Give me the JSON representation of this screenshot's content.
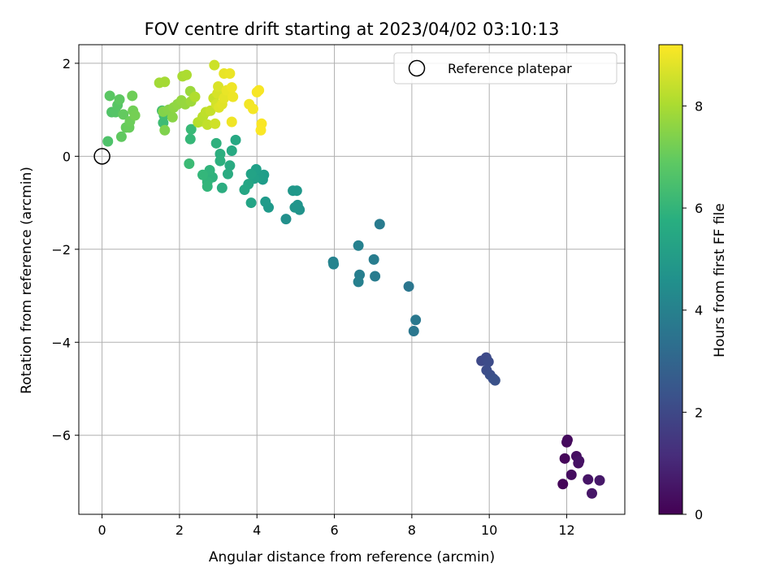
{
  "chart_data": {
    "type": "scatter",
    "title": "FOV centre drift starting at 2023/04/02 03:10:13",
    "xlabel": "Angular distance from reference (arcmin)",
    "ylabel": "Rotation from reference (arcmin)",
    "colorbar_label": "Hours from first FF file",
    "xlim": [
      -0.6,
      13.5
    ],
    "ylim": [
      -7.7,
      2.4
    ],
    "xticks": [
      0,
      2,
      4,
      6,
      8,
      10,
      12
    ],
    "xtick_labels": [
      "0",
      "2",
      "4",
      "6",
      "8",
      "10",
      "12"
    ],
    "yticks": [
      2,
      0,
      -2,
      -4,
      -6
    ],
    "ytick_labels": [
      "2",
      "0",
      "−2",
      "−4",
      "−6"
    ],
    "colorbar_range": [
      0,
      9.2
    ],
    "colorbar_ticks": [
      0,
      2,
      4,
      6,
      8
    ],
    "colorbar_tick_labels": [
      "0",
      "2",
      "4",
      "6",
      "8"
    ],
    "colormap": "viridis",
    "grid": true,
    "legend": {
      "position": "top-right",
      "label": "Reference platepar"
    },
    "reference_point": {
      "x": 0,
      "y": 0
    },
    "points": [
      {
        "x": 11.9,
        "y": -7.05,
        "h": 0.1
      },
      {
        "x": 11.95,
        "y": -6.5,
        "h": 0.15
      },
      {
        "x": 12.0,
        "y": -6.15,
        "h": 0.2
      },
      {
        "x": 12.02,
        "y": -6.1,
        "h": 0.25
      },
      {
        "x": 12.12,
        "y": -6.85,
        "h": 0.3
      },
      {
        "x": 12.25,
        "y": -6.45,
        "h": 0.35
      },
      {
        "x": 12.3,
        "y": -6.6,
        "h": 0.4
      },
      {
        "x": 12.32,
        "y": -6.55,
        "h": 0.45
      },
      {
        "x": 12.55,
        "y": -6.95,
        "h": 0.5
      },
      {
        "x": 12.65,
        "y": -7.25,
        "h": 0.55
      },
      {
        "x": 12.85,
        "y": -6.97,
        "h": 0.6
      },
      {
        "x": 9.8,
        "y": -4.4,
        "h": 2.0
      },
      {
        "x": 9.92,
        "y": -4.33,
        "h": 2.05
      },
      {
        "x": 9.98,
        "y": -4.42,
        "h": 2.1
      },
      {
        "x": 9.93,
        "y": -4.6,
        "h": 2.15
      },
      {
        "x": 10.02,
        "y": -4.7,
        "h": 2.2
      },
      {
        "x": 10.1,
        "y": -4.78,
        "h": 2.25
      },
      {
        "x": 10.15,
        "y": -4.82,
        "h": 2.3
      },
      {
        "x": 7.92,
        "y": -2.8,
        "h": 3.6
      },
      {
        "x": 8.05,
        "y": -3.76,
        "h": 3.65
      },
      {
        "x": 8.1,
        "y": -3.52,
        "h": 3.7
      },
      {
        "x": 7.17,
        "y": -1.46,
        "h": 3.8
      },
      {
        "x": 7.05,
        "y": -2.58,
        "h": 3.85
      },
      {
        "x": 7.02,
        "y": -2.22,
        "h": 3.9
      },
      {
        "x": 6.65,
        "y": -2.55,
        "h": 3.95
      },
      {
        "x": 6.62,
        "y": -2.7,
        "h": 4.0
      },
      {
        "x": 6.62,
        "y": -1.92,
        "h": 4.05
      },
      {
        "x": 5.97,
        "y": -2.27,
        "h": 4.1
      },
      {
        "x": 5.98,
        "y": -2.32,
        "h": 4.15
      },
      {
        "x": 4.75,
        "y": -1.35,
        "h": 4.6
      },
      {
        "x": 5.1,
        "y": -1.15,
        "h": 4.7
      },
      {
        "x": 5.05,
        "y": -1.05,
        "h": 4.75
      },
      {
        "x": 4.98,
        "y": -1.1,
        "h": 4.8
      },
      {
        "x": 4.93,
        "y": -0.74,
        "h": 4.85
      },
      {
        "x": 5.03,
        "y": -0.74,
        "h": 4.9
      },
      {
        "x": 4.3,
        "y": -1.1,
        "h": 4.95
      },
      {
        "x": 4.22,
        "y": -0.98,
        "h": 5.0
      },
      {
        "x": 4.15,
        "y": -0.5,
        "h": 5.05
      },
      {
        "x": 4.18,
        "y": -0.4,
        "h": 5.1
      },
      {
        "x": 4.05,
        "y": -0.45,
        "h": 5.15
      },
      {
        "x": 3.98,
        "y": -0.28,
        "h": 5.2
      },
      {
        "x": 3.93,
        "y": -0.48,
        "h": 5.25
      },
      {
        "x": 3.85,
        "y": -0.38,
        "h": 5.3
      },
      {
        "x": 3.85,
        "y": -1.0,
        "h": 5.35
      },
      {
        "x": 3.78,
        "y": -0.6,
        "h": 5.4
      },
      {
        "x": 3.68,
        "y": -0.72,
        "h": 5.45
      },
      {
        "x": 3.45,
        "y": 0.35,
        "h": 5.5
      },
      {
        "x": 3.35,
        "y": 0.12,
        "h": 5.55
      },
      {
        "x": 3.3,
        "y": -0.2,
        "h": 5.6
      },
      {
        "x": 3.25,
        "y": -0.38,
        "h": 5.65
      },
      {
        "x": 3.1,
        "y": -0.68,
        "h": 5.7
      },
      {
        "x": 3.05,
        "y": 0.05,
        "h": 5.75
      },
      {
        "x": 3.05,
        "y": -0.1,
        "h": 5.8
      },
      {
        "x": 2.95,
        "y": 0.28,
        "h": 5.85
      },
      {
        "x": 2.85,
        "y": -0.45,
        "h": 5.9
      },
      {
        "x": 2.78,
        "y": -0.3,
        "h": 5.95
      },
      {
        "x": 2.72,
        "y": -0.55,
        "h": 6.0
      },
      {
        "x": 2.72,
        "y": -0.65,
        "h": 6.05
      },
      {
        "x": 2.6,
        "y": -0.4,
        "h": 6.1
      },
      {
        "x": 2.28,
        "y": 0.37,
        "h": 6.15
      },
      {
        "x": 2.3,
        "y": 0.58,
        "h": 6.2
      },
      {
        "x": 2.25,
        "y": -0.16,
        "h": 6.25
      },
      {
        "x": 1.58,
        "y": 0.72,
        "h": 6.3
      },
      {
        "x": 1.6,
        "y": 0.88,
        "h": 6.35
      },
      {
        "x": 1.55,
        "y": 0.98,
        "h": 6.4
      },
      {
        "x": 0.15,
        "y": 0.32,
        "h": 6.6
      },
      {
        "x": 0.25,
        "y": 0.95,
        "h": 6.65
      },
      {
        "x": 0.35,
        "y": 0.95,
        "h": 6.7
      },
      {
        "x": 0.4,
        "y": 1.1,
        "h": 6.75
      },
      {
        "x": 0.2,
        "y": 1.3,
        "h": 6.8
      },
      {
        "x": 0.45,
        "y": 1.22,
        "h": 6.85
      },
      {
        "x": 0.5,
        "y": 0.42,
        "h": 6.9
      },
      {
        "x": 0.55,
        "y": 0.9,
        "h": 6.95
      },
      {
        "x": 0.62,
        "y": 0.62,
        "h": 7.0
      },
      {
        "x": 0.7,
        "y": 0.62,
        "h": 7.05
      },
      {
        "x": 0.72,
        "y": 0.75,
        "h": 7.1
      },
      {
        "x": 0.78,
        "y": 1.3,
        "h": 7.15
      },
      {
        "x": 0.8,
        "y": 0.98,
        "h": 7.2
      },
      {
        "x": 0.85,
        "y": 0.88,
        "h": 7.25
      },
      {
        "x": 1.62,
        "y": 0.56,
        "h": 7.4
      },
      {
        "x": 1.58,
        "y": 0.96,
        "h": 7.45
      },
      {
        "x": 1.72,
        "y": 1.0,
        "h": 7.5
      },
      {
        "x": 1.82,
        "y": 0.84,
        "h": 7.55
      },
      {
        "x": 1.85,
        "y": 1.05,
        "h": 7.6
      },
      {
        "x": 1.95,
        "y": 1.12,
        "h": 7.65
      },
      {
        "x": 2.05,
        "y": 1.2,
        "h": 7.7
      },
      {
        "x": 2.15,
        "y": 1.12,
        "h": 7.75
      },
      {
        "x": 2.28,
        "y": 1.4,
        "h": 7.8
      },
      {
        "x": 2.3,
        "y": 1.18,
        "h": 7.85
      },
      {
        "x": 1.48,
        "y": 1.58,
        "h": 7.9
      },
      {
        "x": 1.62,
        "y": 1.6,
        "h": 7.95
      },
      {
        "x": 2.08,
        "y": 1.72,
        "h": 8.0
      },
      {
        "x": 2.18,
        "y": 1.75,
        "h": 8.05
      },
      {
        "x": 2.4,
        "y": 1.28,
        "h": 8.1
      },
      {
        "x": 2.48,
        "y": 0.73,
        "h": 8.15
      },
      {
        "x": 2.55,
        "y": 0.75,
        "h": 8.2
      },
      {
        "x": 2.6,
        "y": 0.85,
        "h": 8.25
      },
      {
        "x": 2.68,
        "y": 0.95,
        "h": 8.3
      },
      {
        "x": 2.72,
        "y": 0.68,
        "h": 8.35
      },
      {
        "x": 2.8,
        "y": 0.98,
        "h": 8.4
      },
      {
        "x": 2.88,
        "y": 1.25,
        "h": 8.45
      },
      {
        "x": 2.9,
        "y": 1.96,
        "h": 8.5
      },
      {
        "x": 2.92,
        "y": 0.7,
        "h": 8.55
      },
      {
        "x": 2.95,
        "y": 1.12,
        "h": 8.6
      },
      {
        "x": 2.98,
        "y": 1.35,
        "h": 8.65
      },
      {
        "x": 3.0,
        "y": 1.5,
        "h": 8.7
      },
      {
        "x": 3.02,
        "y": 1.05,
        "h": 8.75
      },
      {
        "x": 3.1,
        "y": 1.12,
        "h": 8.8
      },
      {
        "x": 3.15,
        "y": 1.25,
        "h": 8.85
      },
      {
        "x": 3.15,
        "y": 1.78,
        "h": 8.9
      },
      {
        "x": 3.22,
        "y": 1.42,
        "h": 8.92
      },
      {
        "x": 3.3,
        "y": 1.78,
        "h": 8.95
      },
      {
        "x": 3.38,
        "y": 1.28,
        "h": 8.97
      },
      {
        "x": 3.35,
        "y": 1.48,
        "h": 9.0
      },
      {
        "x": 3.35,
        "y": 0.74,
        "h": 9.02
      },
      {
        "x": 3.8,
        "y": 1.12,
        "h": 9.05
      },
      {
        "x": 3.9,
        "y": 1.02,
        "h": 9.07
      },
      {
        "x": 4.0,
        "y": 1.38,
        "h": 9.1
      },
      {
        "x": 4.05,
        "y": 1.42,
        "h": 9.12
      },
      {
        "x": 4.12,
        "y": 0.7,
        "h": 9.14
      },
      {
        "x": 4.1,
        "y": 0.56,
        "h": 9.16
      }
    ]
  }
}
